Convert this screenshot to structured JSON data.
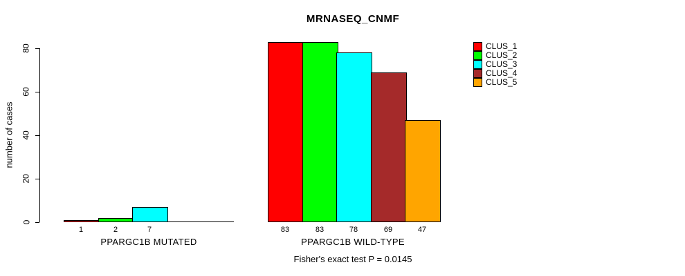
{
  "figure": {
    "title": "MRNASEQ_CNMF",
    "ylabel": "number of cases",
    "annotation": "Fisher's exact test P = 0.0145"
  },
  "legend": {
    "items": [
      {
        "label": "CLUS_1",
        "color": "#FF0000"
      },
      {
        "label": "CLUS_2",
        "color": "#00FF00"
      },
      {
        "label": "CLUS_3",
        "color": "#00FFFF"
      },
      {
        "label": "CLUS_4",
        "color": "#A52A2A"
      },
      {
        "label": "CLUS_5",
        "color": "#FFA500"
      }
    ]
  },
  "chart_data": {
    "type": "bar",
    "title": "MRNASEQ_CNMF",
    "ylabel": "number of cases",
    "ylim": [
      0,
      83
    ],
    "yticks": [
      0,
      20,
      40,
      60,
      80
    ],
    "grid": false,
    "legend_position": "right",
    "categories": [
      "CLUS_1",
      "CLUS_2",
      "CLUS_3",
      "CLUS_4",
      "CLUS_5"
    ],
    "colors": [
      "#FF0000",
      "#00FF00",
      "#00FFFF",
      "#A52A2A",
      "#FFA500"
    ],
    "groups": [
      {
        "label": "PPARGC1B MUTATED",
        "values": [
          1,
          2,
          7,
          0,
          0
        ],
        "bar_labels": [
          "1",
          "2",
          "7",
          "",
          ""
        ]
      },
      {
        "label": "PPARGC1B WILD-TYPE",
        "values": [
          83,
          83,
          78,
          69,
          47
        ],
        "bar_labels": [
          "83",
          "83",
          "78",
          "69",
          "47"
        ]
      }
    ],
    "annotation": "Fisher's exact test P = 0.0145"
  }
}
